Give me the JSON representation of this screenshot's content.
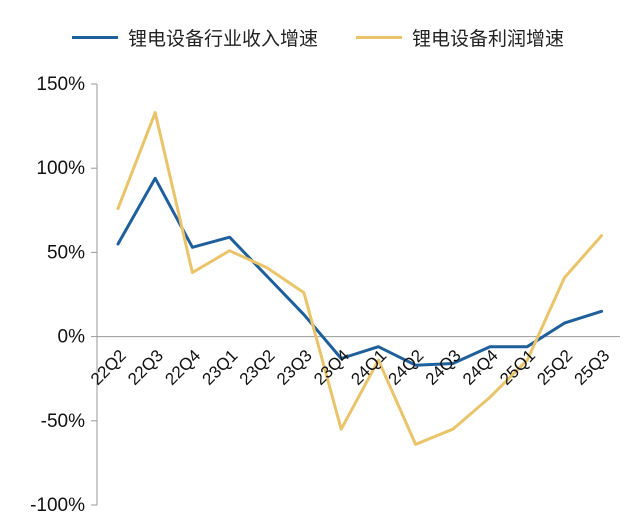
{
  "chart_data": {
    "type": "line",
    "categories": [
      "22Q2",
      "22Q3",
      "22Q4",
      "23Q1",
      "23Q2",
      "23Q3",
      "23Q4",
      "24Q1",
      "24Q2",
      "24Q3",
      "24Q4",
      "25Q1",
      "25Q2",
      "25Q3"
    ],
    "series": [
      {
        "name": "锂电设备行业收入增速",
        "color": "#1f5f9b",
        "values": [
          55,
          94,
          53,
          59,
          36,
          13,
          -13,
          -6,
          -17,
          -16,
          -6,
          -6,
          8,
          15
        ]
      },
      {
        "name": "锂电设备利润增速",
        "color": "#e9c46a",
        "values": [
          76,
          133,
          38,
          51,
          41,
          26,
          -55,
          -14,
          -64,
          -55,
          -36,
          -14,
          35,
          60
        ]
      }
    ],
    "ylim": [
      -100,
      150
    ],
    "yticks": [
      150,
      100,
      50,
      0,
      -50,
      -100
    ],
    "ytick_labels": [
      "150%",
      "100%",
      "50%",
      "0%",
      "-50%",
      "-100%"
    ],
    "legend_position": "top",
    "grid": false
  }
}
